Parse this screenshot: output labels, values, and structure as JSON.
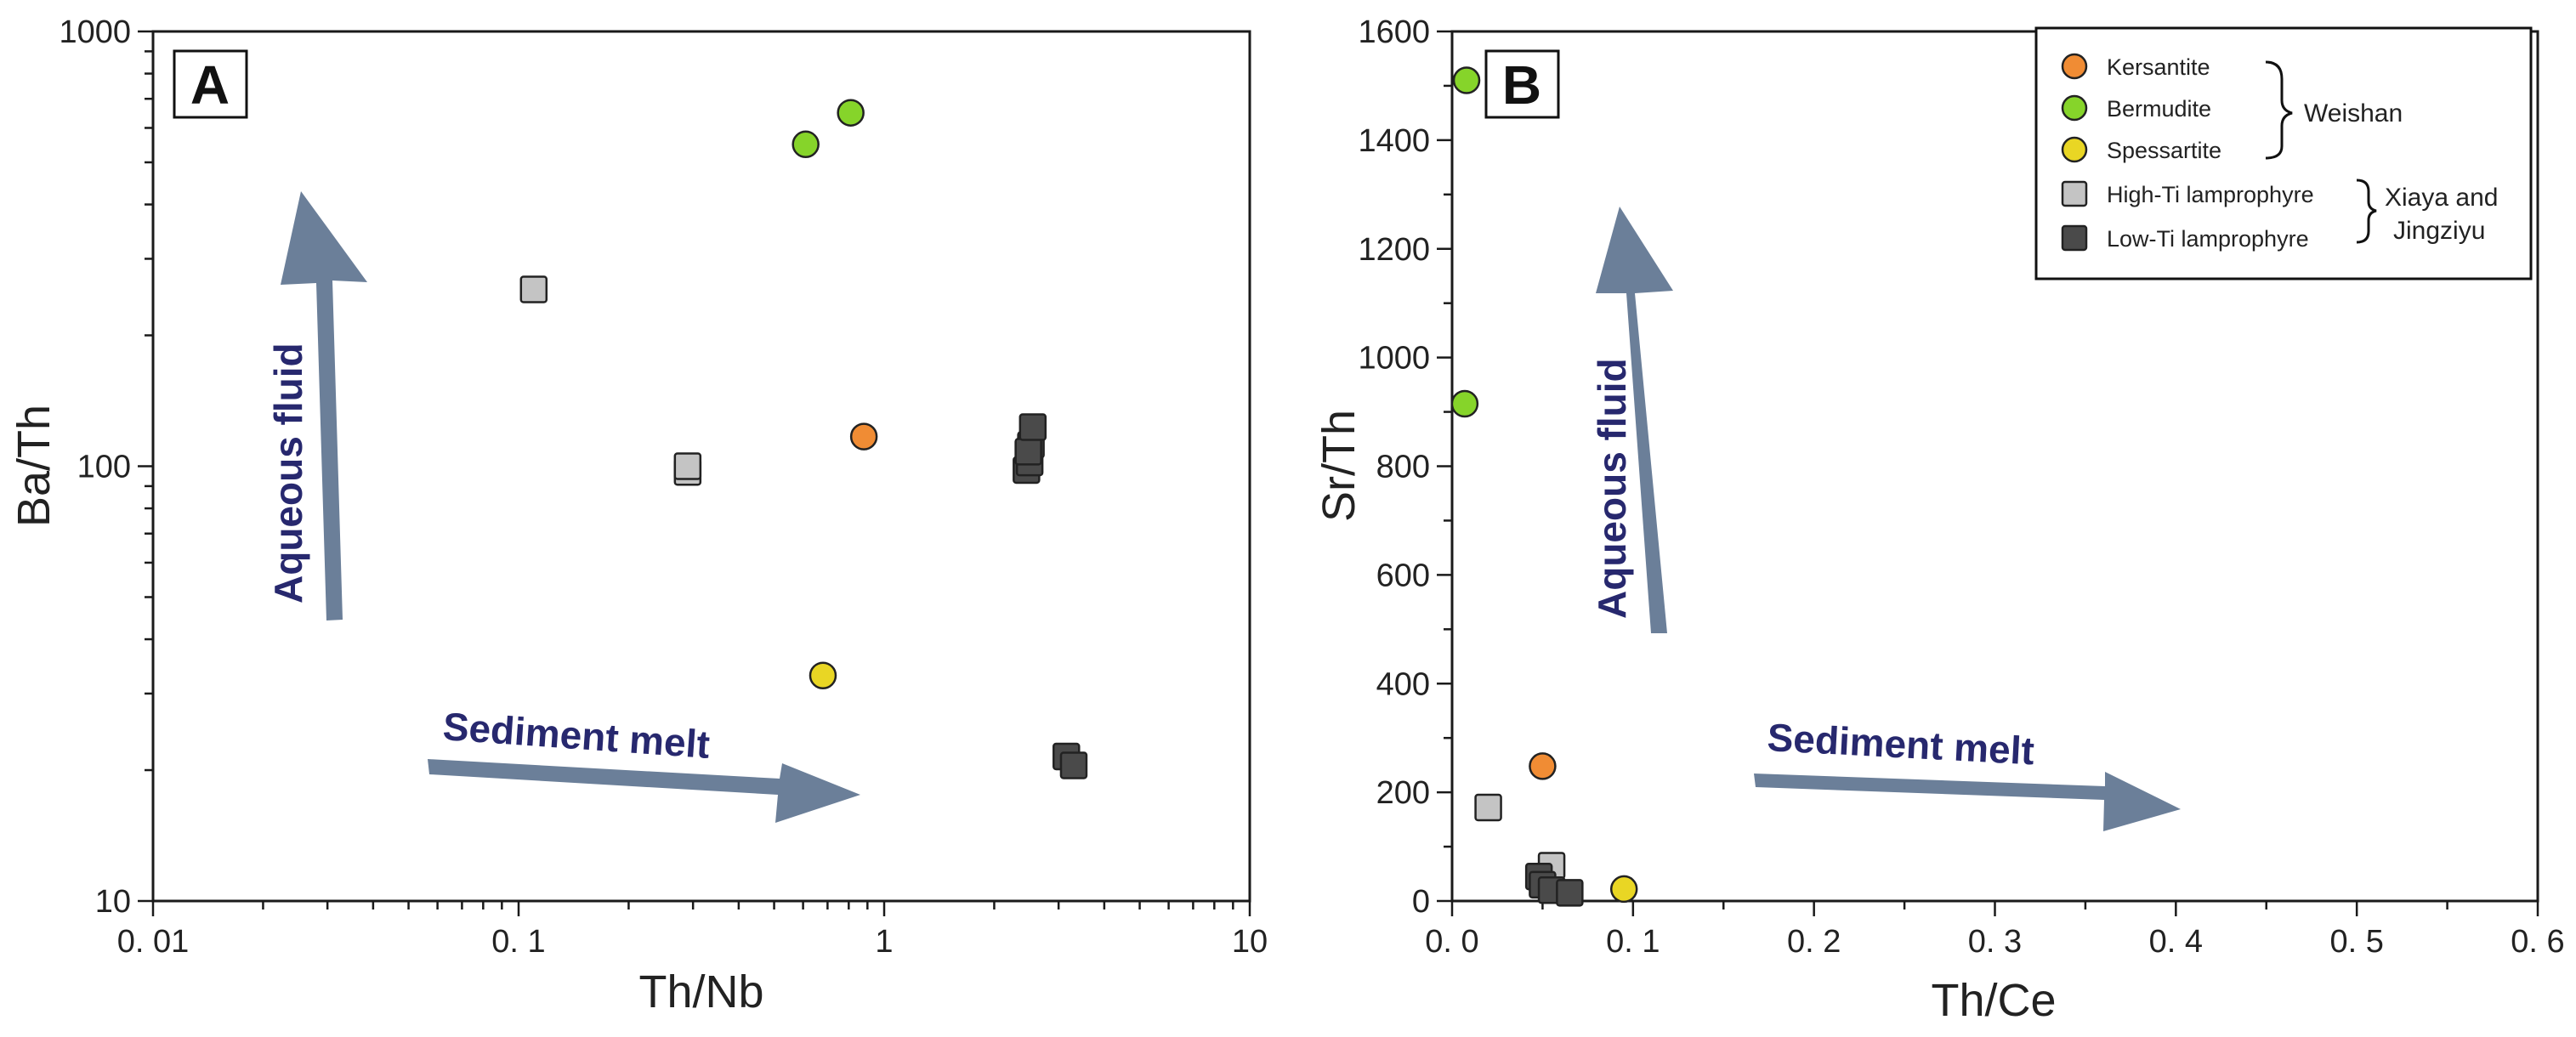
{
  "colors": {
    "kersantite": "#f08c34",
    "bermudite": "#86d42a",
    "spessartite": "#e9d624",
    "high_ti": "#c4c4c4",
    "low_ti": "#4a4a4a",
    "arrow": "#6b7f99",
    "arrow_text": "#27286e"
  },
  "legend": {
    "items": [
      {
        "label": "Kersantite",
        "key": "kersantite",
        "shape": "circle"
      },
      {
        "label": "Bermudite",
        "key": "bermudite",
        "shape": "circle"
      },
      {
        "label": "Spessartite",
        "key": "spessartite",
        "shape": "circle"
      },
      {
        "label": "High-Ti lamprophyre",
        "key": "high_ti",
        "shape": "square"
      },
      {
        "label": "Low-Ti lamprophyre",
        "key": "low_ti",
        "shape": "square"
      }
    ],
    "group_weishan": "Weishan",
    "group_xiaya_line1": "Xiaya and",
    "group_xiaya_line2": "Jingziyu"
  },
  "chart_data": [
    {
      "panel": "A",
      "type": "scatter",
      "xlabel": "Th/Nb",
      "ylabel": "Ba/Th",
      "xscale": "log",
      "yscale": "log",
      "xlim": [
        0.01,
        10
      ],
      "ylim": [
        10,
        1000
      ],
      "xticks": [
        0.01,
        0.1,
        1,
        10
      ],
      "xtick_labels": [
        "0. 01",
        "0. 1",
        "1",
        "10"
      ],
      "yticks": [
        10,
        100,
        1000
      ],
      "ytick_labels": [
        "10",
        "100",
        "1000"
      ],
      "annotations": {
        "vertical_arrow": "Aqueous fluid",
        "horizontal_arrow": "Sediment melt"
      },
      "series": [
        {
          "name": "Kersantite",
          "key": "kersantite",
          "shape": "circle",
          "points": [
            [
              0.88,
              117
            ]
          ]
        },
        {
          "name": "Bermudite",
          "key": "bermudite",
          "shape": "circle",
          "points": [
            [
              0.61,
              550
            ],
            [
              0.81,
              650
            ]
          ]
        },
        {
          "name": "Spessartite",
          "key": "spessartite",
          "shape": "circle",
          "points": [
            [
              0.68,
              33
            ]
          ]
        },
        {
          "name": "High-Ti lamprophyre",
          "key": "high_ti",
          "shape": "square",
          "points": [
            [
              0.11,
              255
            ],
            [
              0.29,
              97
            ],
            [
              0.29,
              100
            ]
          ]
        },
        {
          "name": "Low-Ti lamprophyre",
          "key": "low_ti",
          "shape": "square",
          "points": [
            [
              2.45,
              98
            ],
            [
              2.5,
              102
            ],
            [
              2.52,
              112
            ],
            [
              2.48,
              108
            ],
            [
              2.55,
              123
            ],
            [
              3.15,
              21.5
            ],
            [
              3.3,
              20.5
            ]
          ]
        }
      ]
    },
    {
      "panel": "B",
      "type": "scatter",
      "xlabel": "Th/Ce",
      "ylabel": "Sr/Th",
      "xscale": "linear",
      "yscale": "linear",
      "xlim": [
        0,
        0.6
      ],
      "ylim": [
        0,
        1600
      ],
      "xticks": [
        0,
        0.1,
        0.2,
        0.3,
        0.4,
        0.5,
        0.6
      ],
      "xtick_labels": [
        "0. 0",
        "0. 1",
        "0. 2",
        "0. 3",
        "0. 4",
        "0. 5",
        "0. 6"
      ],
      "yticks": [
        0,
        200,
        400,
        600,
        800,
        1000,
        1200,
        1400,
        1600
      ],
      "ytick_labels": [
        "0",
        "200",
        "400",
        "600",
        "800",
        "1000",
        "1200",
        "1400",
        "1600"
      ],
      "annotations": {
        "vertical_arrow": "Aqueous fluid",
        "horizontal_arrow": "Sediment melt"
      },
      "series": [
        {
          "name": "Kersantite",
          "key": "kersantite",
          "shape": "circle",
          "points": [
            [
              0.05,
              248
            ]
          ]
        },
        {
          "name": "Bermudite",
          "key": "bermudite",
          "shape": "circle",
          "points": [
            [
              0.008,
              1510
            ],
            [
              0.007,
              915
            ]
          ]
        },
        {
          "name": "Spessartite",
          "key": "spessartite",
          "shape": "circle",
          "points": [
            [
              0.095,
              22
            ]
          ]
        },
        {
          "name": "High-Ti lamprophyre",
          "key": "high_ti",
          "shape": "square",
          "points": [
            [
              0.02,
              172
            ],
            [
              0.055,
              65
            ]
          ]
        },
        {
          "name": "Low-Ti lamprophyre",
          "key": "low_ti",
          "shape": "square",
          "points": [
            [
              0.048,
              45
            ],
            [
              0.05,
              30
            ],
            [
              0.055,
              20
            ],
            [
              0.065,
              15
            ]
          ]
        }
      ]
    }
  ]
}
